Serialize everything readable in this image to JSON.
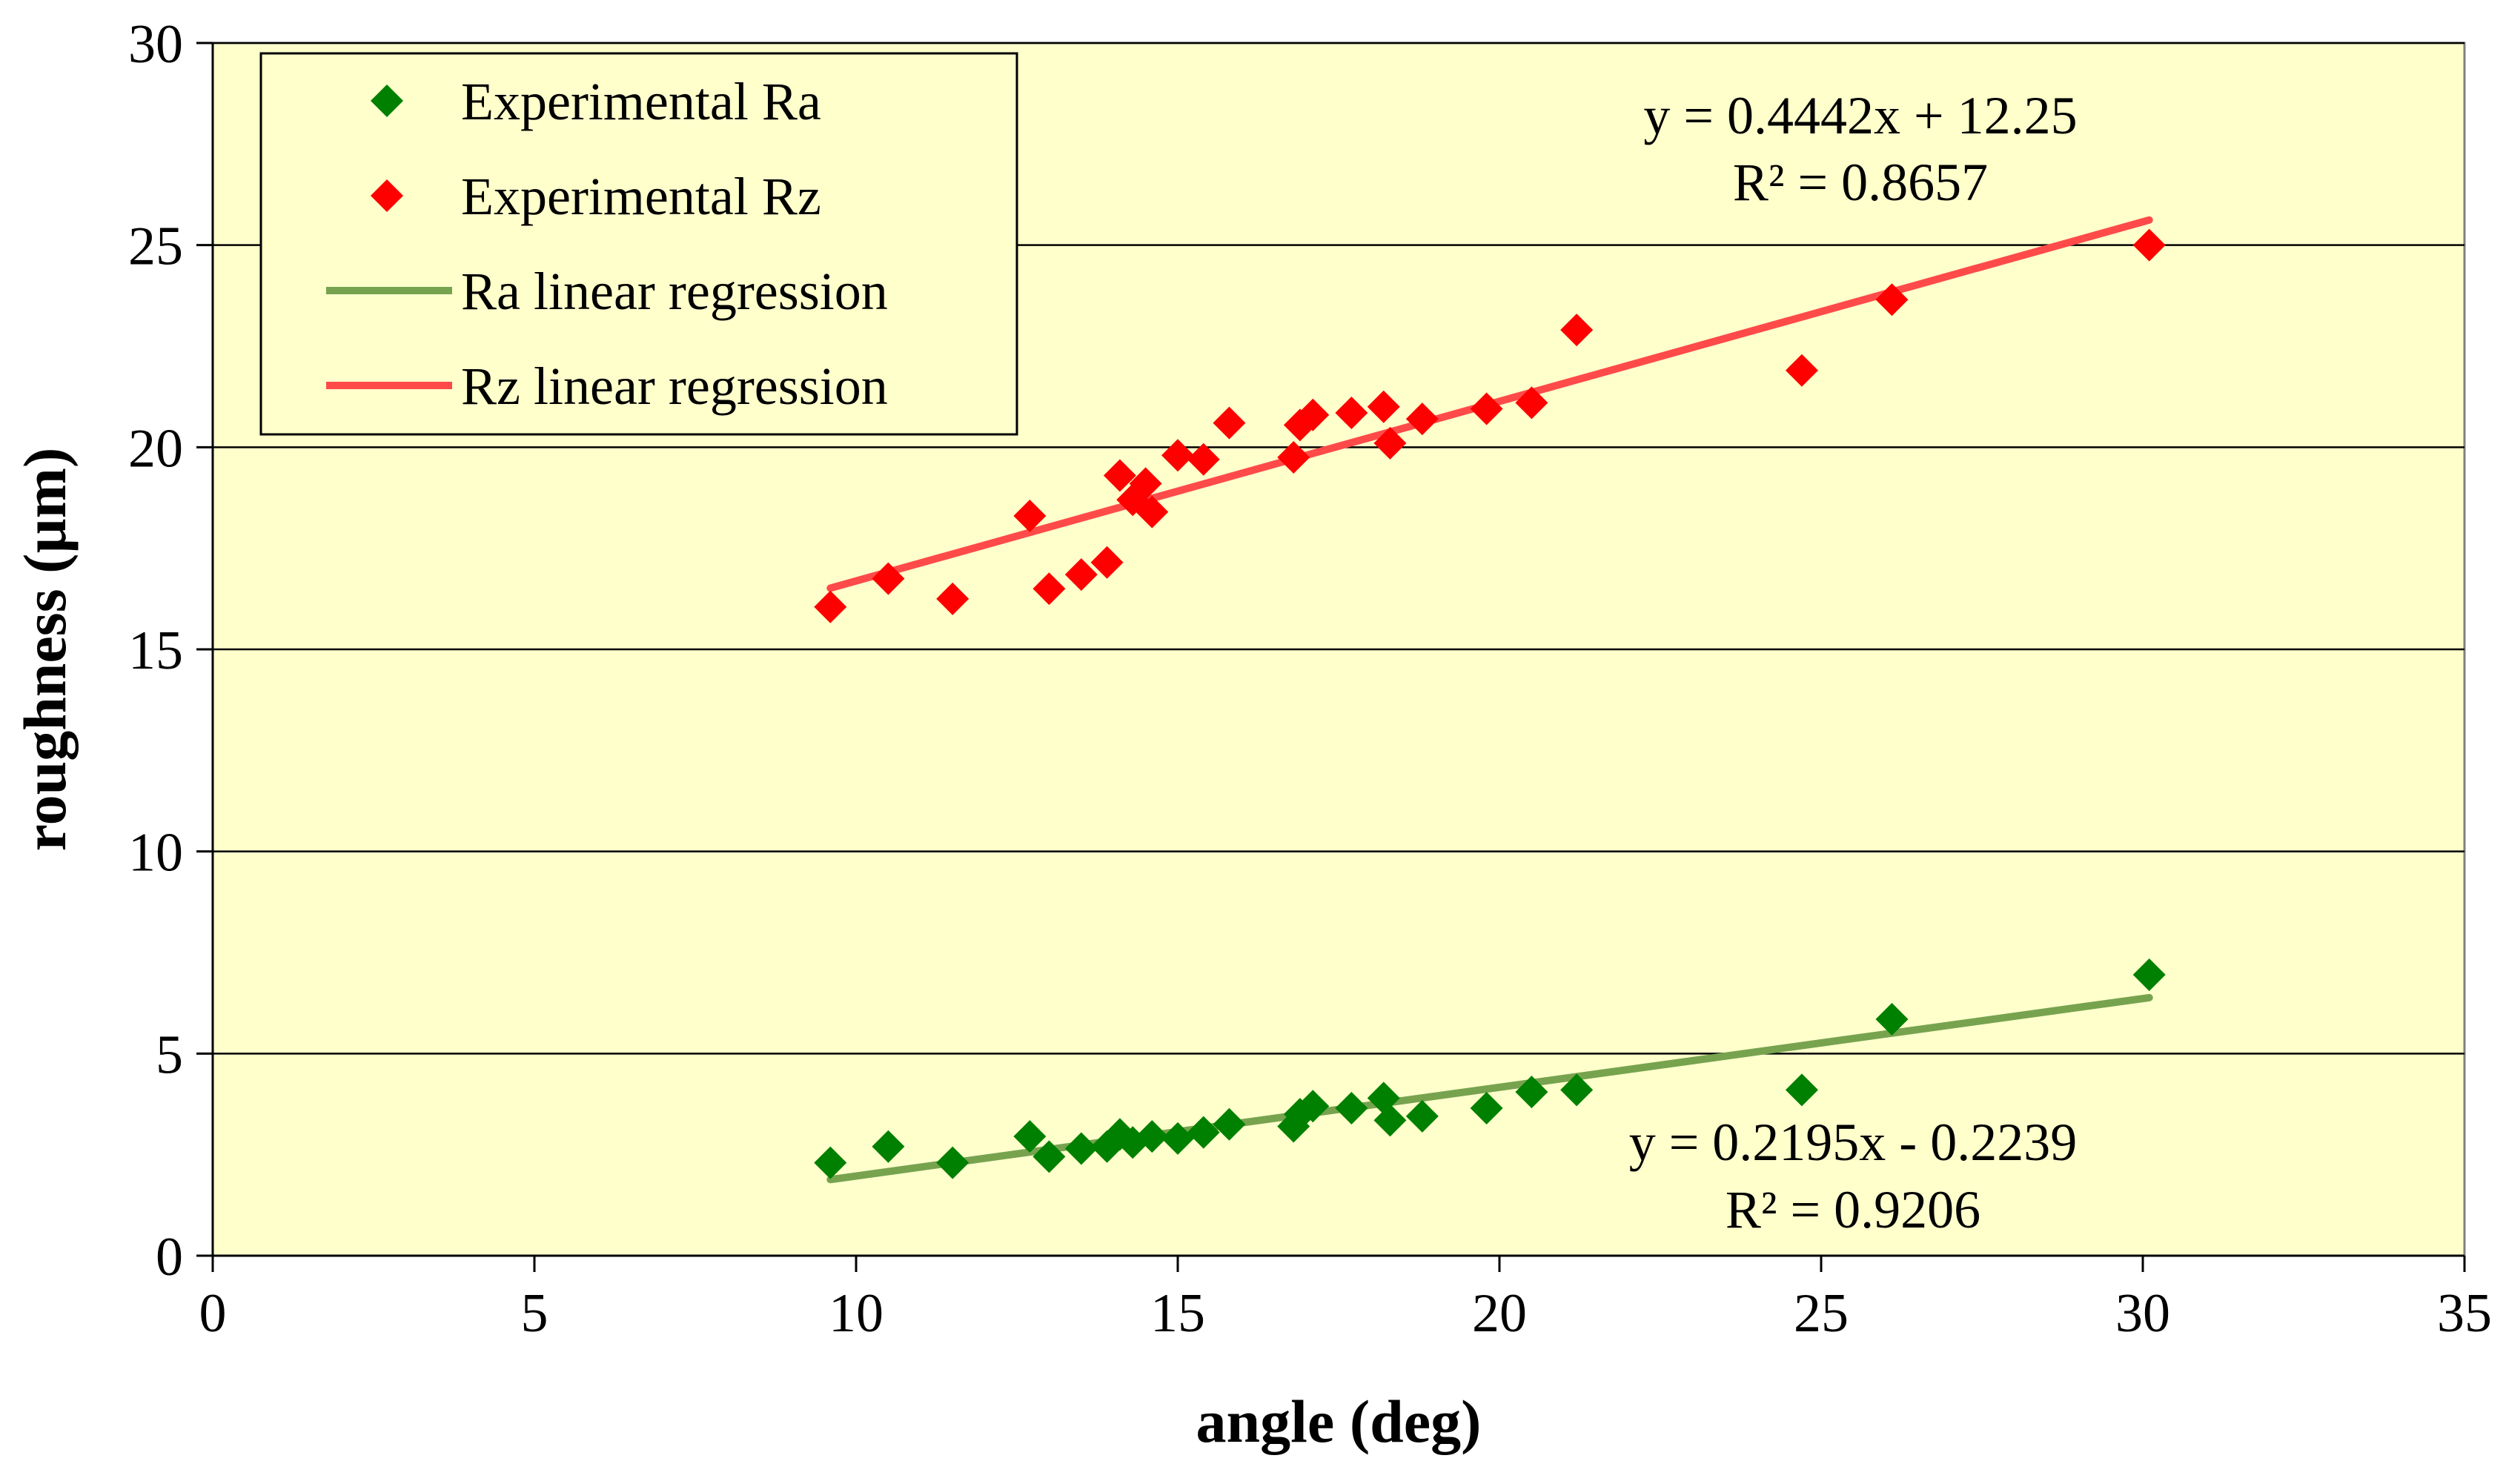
{
  "chart_data": {
    "type": "scatter",
    "xlabel": "angle (deg)",
    "ylabel": "roughness (µm)",
    "xlim": [
      0,
      35
    ],
    "ylim": [
      0,
      30
    ],
    "xticks": [
      0,
      5,
      10,
      15,
      20,
      25,
      30,
      35
    ],
    "yticks": [
      0,
      5,
      10,
      15,
      20,
      25,
      30
    ],
    "grid": "horizontal",
    "plot_background": "#FFFFCC",
    "legend_position": "top-left",
    "series": [
      {
        "name": "Experimental Ra",
        "kind": "scatter",
        "marker": "diamond",
        "color": "#008000",
        "points": [
          [
            9.6,
            2.3
          ],
          [
            10.5,
            2.7
          ],
          [
            11.5,
            2.3
          ],
          [
            12.7,
            2.95
          ],
          [
            13.0,
            2.45
          ],
          [
            13.5,
            2.65
          ],
          [
            13.9,
            2.7
          ],
          [
            14.1,
            3.0
          ],
          [
            14.3,
            2.8
          ],
          [
            14.6,
            2.95
          ],
          [
            15.0,
            2.9
          ],
          [
            15.4,
            3.05
          ],
          [
            15.8,
            3.25
          ],
          [
            16.8,
            3.2
          ],
          [
            16.9,
            3.5
          ],
          [
            17.1,
            3.7
          ],
          [
            17.7,
            3.65
          ],
          [
            18.2,
            3.9
          ],
          [
            18.3,
            3.35
          ],
          [
            18.8,
            3.45
          ],
          [
            19.8,
            3.65
          ],
          [
            20.5,
            4.05
          ],
          [
            21.2,
            4.1
          ],
          [
            24.7,
            4.1
          ],
          [
            26.1,
            5.85
          ],
          [
            30.1,
            6.95
          ]
        ]
      },
      {
        "name": "Experimental Rz",
        "kind": "scatter",
        "marker": "diamond",
        "color": "#FF0000",
        "points": [
          [
            9.6,
            16.05
          ],
          [
            10.5,
            16.75
          ],
          [
            11.5,
            16.25
          ],
          [
            12.7,
            18.3
          ],
          [
            13.0,
            16.5
          ],
          [
            13.5,
            16.85
          ],
          [
            13.9,
            17.15
          ],
          [
            14.1,
            19.3
          ],
          [
            14.3,
            18.7
          ],
          [
            14.5,
            19.1
          ],
          [
            14.6,
            18.4
          ],
          [
            15.0,
            19.8
          ],
          [
            15.4,
            19.7
          ],
          [
            15.8,
            20.6
          ],
          [
            16.8,
            19.75
          ],
          [
            16.9,
            20.55
          ],
          [
            17.1,
            20.8
          ],
          [
            17.7,
            20.85
          ],
          [
            18.2,
            21.0
          ],
          [
            18.3,
            20.1
          ],
          [
            18.8,
            20.7
          ],
          [
            19.8,
            20.95
          ],
          [
            20.5,
            21.1
          ],
          [
            21.2,
            22.9
          ],
          [
            24.7,
            21.9
          ],
          [
            26.1,
            23.65
          ],
          [
            30.1,
            25.0
          ]
        ]
      },
      {
        "name": "Ra linear regression",
        "kind": "line",
        "color": "#77A34F",
        "slope": 0.2195,
        "intercept": -0.2239,
        "x_range": [
          9.6,
          30.1
        ],
        "equation": "y = 0.2195x - 0.2239",
        "r_squared": "R² = 0.9206"
      },
      {
        "name": "Rz linear regression",
        "kind": "line",
        "color": "#FF4A4A",
        "slope": 0.4442,
        "intercept": 12.25,
        "x_range": [
          9.6,
          30.1
        ],
        "equation": "y = 0.4442x + 12.25",
        "r_squared": "R² = 0.8657"
      }
    ]
  }
}
